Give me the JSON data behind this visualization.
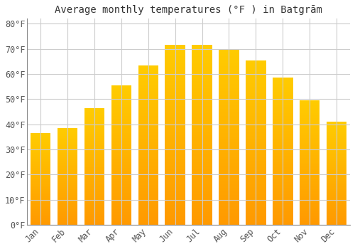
{
  "title": "Average monthly temperatures (°F ) in Batgrām",
  "months": [
    "Jan",
    "Feb",
    "Mar",
    "Apr",
    "May",
    "Jun",
    "Jul",
    "Aug",
    "Sep",
    "Oct",
    "Nov",
    "Dec"
  ],
  "values": [
    36.5,
    38.5,
    46.5,
    55.5,
    63.5,
    71.5,
    71.5,
    70.0,
    65.5,
    58.5,
    49.5,
    41.0
  ],
  "bar_color_top": "#FFCC00",
  "bar_color_bottom": "#FF9900",
  "background_color": "#FFFFFF",
  "grid_color": "#CCCCCC",
  "ylim": [
    0,
    82
  ],
  "yticks": [
    0,
    10,
    20,
    30,
    40,
    50,
    60,
    70,
    80
  ],
  "title_fontsize": 10,
  "tick_fontsize": 8.5,
  "font_family": "monospace"
}
